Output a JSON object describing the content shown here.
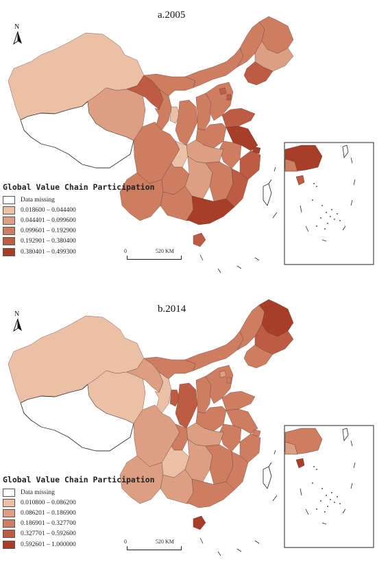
{
  "colors": {
    "class1": "#ecc0a6",
    "class2": "#dc9f82",
    "class3": "#cf7d61",
    "class4": "#be5c43",
    "class5": "#a83d28",
    "missing": "#ffffff",
    "boundary": "#5a4038"
  },
  "north_arrow": {
    "label": "N",
    "icon": "north-arrow-icon"
  },
  "maps": [
    {
      "title": "a.2005",
      "legend": {
        "title": "Global Value Chain Participation",
        "items": [
          {
            "label": "Data missing",
            "class": "missing"
          },
          {
            "label": "0.018600 – 0.044400",
            "class": "class1"
          },
          {
            "label": "0.044401 – 0.099600",
            "class": "class2"
          },
          {
            "label": "0.099601 – 0.192900",
            "class": "class3"
          },
          {
            "label": "0.192901 – 0.380400",
            "class": "class4"
          },
          {
            "label": "0.380401 – 0.499300",
            "class": "class5"
          }
        ]
      },
      "scale": {
        "zero": "0",
        "text": "520 KM"
      },
      "regions": {
        "xinjiang": "class1",
        "tibet": "missing",
        "qinghai": "class2",
        "gansu_west": "class4",
        "gansu_east": "class3",
        "innermongolia_west": "class3",
        "innermongolia_mid": "class3",
        "innermongolia_east": "class3",
        "heilongjiang": "class3",
        "jilin": "class2",
        "liaoning": "class4",
        "ningxia": "class1",
        "shaanxi": "class3",
        "shanxi": "class3",
        "hebei": "class3",
        "beijing": "class4",
        "tianjin": "class4",
        "shandong": "class4",
        "henan": "class3",
        "jiangsu": "class5",
        "shanghai": "class5",
        "anhui": "class3",
        "zhejiang": "class4",
        "hubei": "class2",
        "sichuan": "class3",
        "chongqing": "class1",
        "guizhou": "class3",
        "hunan": "class2",
        "jiangxi": "class3",
        "fujian": "class4",
        "yunnan": "class3",
        "guangxi": "class3",
        "guangdong": "class5",
        "hainan": "class4",
        "taiwan": "missing"
      }
    },
    {
      "title": "b.2014",
      "legend": {
        "title": "Global Value Chain Participation",
        "items": [
          {
            "label": "Data missing",
            "class": "missing"
          },
          {
            "label": "0.010800 – 0.086200",
            "class": "class1"
          },
          {
            "label": "0.086201 – 0.186900",
            "class": "class2"
          },
          {
            "label": "0.186901 – 0.327700",
            "class": "class3"
          },
          {
            "label": "0.327701 – 0.592600",
            "class": "class4"
          },
          {
            "label": "0.592601 – 1.000000",
            "class": "class5"
          }
        ]
      },
      "scale": {
        "zero": "0",
        "text": "520 KM"
      },
      "regions": {
        "xinjiang": "class1",
        "tibet": "missing",
        "qinghai": "class1",
        "gansu_west": "class2",
        "gansu_east": "class1",
        "innermongolia_west": "class3",
        "innermongolia_mid": "class3",
        "innermongolia_east": "class3",
        "heilongjiang": "class5",
        "jilin": "class4",
        "liaoning": "class3",
        "ningxia": "class4",
        "shaanxi": "class4",
        "shanxi": "class3",
        "hebei": "class3",
        "beijing": "class2",
        "tianjin": "class3",
        "shandong": "class3",
        "henan": "class3",
        "jiangsu": "class3",
        "shanghai": "class3",
        "anhui": "class3",
        "zhejiang": "class3",
        "hubei": "class2",
        "sichuan": "class2",
        "chongqing": "class3",
        "guizhou": "class1",
        "hunan": "class2",
        "jiangxi": "class3",
        "fujian": "class3",
        "yunnan": "class2",
        "guangxi": "class2",
        "guangdong": "class3",
        "hainan": "class5",
        "taiwan": "missing"
      }
    }
  ]
}
